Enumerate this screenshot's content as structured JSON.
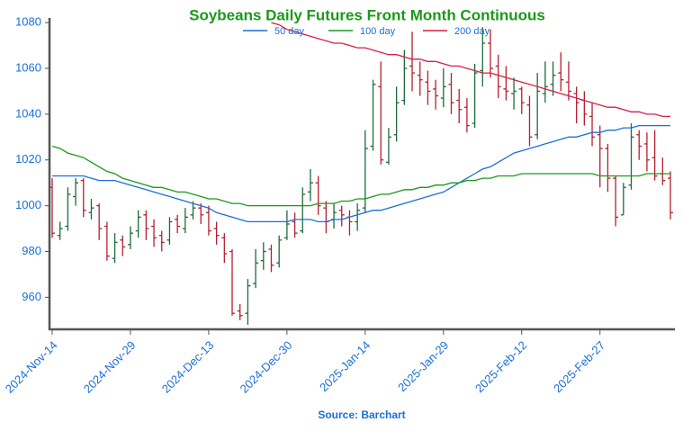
{
  "chart_data": {
    "type": "ohlc",
    "title": "Soybeans Daily Futures Front Month Continuous",
    "source": "Source: Barchart",
    "categories": [
      "2024-Nov-14",
      null,
      null,
      null,
      null,
      null,
      null,
      null,
      null,
      null,
      "2024-Nov-29",
      null,
      null,
      null,
      null,
      null,
      null,
      null,
      null,
      null,
      "2024-Dec-13",
      null,
      null,
      null,
      null,
      null,
      null,
      null,
      null,
      null,
      "2024-Dec-30",
      null,
      null,
      null,
      null,
      null,
      null,
      null,
      null,
      null,
      "2025-Jan-14",
      null,
      null,
      null,
      null,
      null,
      null,
      null,
      null,
      null,
      "2025-Jan-29",
      null,
      null,
      null,
      null,
      null,
      null,
      null,
      null,
      null,
      "2025-Feb-12",
      null,
      null,
      null,
      null,
      null,
      null,
      null,
      null,
      null,
      "2025-Feb-27",
      null,
      null,
      null,
      null,
      null,
      null,
      null,
      null,
      null
    ],
    "open": [
      1008,
      987,
      991,
      1004,
      1011,
      997,
      1000,
      991,
      977,
      985,
      983,
      989,
      996,
      991,
      987,
      985,
      994,
      990,
      996,
      999,
      997,
      990,
      986,
      980,
      954,
      953,
      966,
      976,
      981,
      975,
      986,
      993,
      989,
      1006,
      1010,
      999,
      994,
      998,
      995,
      993,
      999,
      1026,
      1052,
      1019,
      1031,
      1046,
      1061,
      1057,
      1054,
      1051,
      1047,
      1053,
      1046,
      1043,
      1036,
      1059,
      1071,
      1061,
      1051,
      1049,
      1051,
      1044,
      1031,
      1049,
      1053,
      1058,
      1054,
      1049,
      1046,
      1039,
      1031,
      1025,
      1012,
      996,
      1009,
      1031,
      1027,
      1021,
      1014,
      1012
    ],
    "high": [
      1012,
      993,
      1008,
      1012,
      1012,
      1003,
      1001,
      993,
      988,
      987,
      991,
      998,
      998,
      994,
      989,
      995,
      996,
      999,
      1002,
      1001,
      1000,
      993,
      988,
      981,
      957,
      968,
      981,
      984,
      983,
      987,
      998,
      997,
      1008,
      1016,
      1013,
      1002,
      1001,
      1000,
      998,
      1001,
      1033,
      1055,
      1063,
      1034,
      1052,
      1068,
      1076,
      1063,
      1059,
      1055,
      1060,
      1058,
      1051,
      1047,
      1062,
      1078,
      1077,
      1066,
      1061,
      1056,
      1052,
      1048,
      1058,
      1063,
      1063,
      1067,
      1063,
      1052,
      1050,
      1045,
      1035,
      1027,
      1013,
      1010,
      1036,
      1033,
      1032,
      1033,
      1021,
      1015
    ],
    "low": [
      986,
      985,
      989,
      1000,
      995,
      994,
      985,
      976,
      975,
      978,
      981,
      986,
      985,
      982,
      980,
      983,
      988,
      988,
      994,
      992,
      987,
      983,
      975,
      952,
      950,
      948,
      964,
      972,
      971,
      973,
      985,
      986,
      988,
      1002,
      996,
      988,
      990,
      991,
      987,
      989,
      997,
      1024,
      1018,
      1018,
      1028,
      1044,
      1050,
      1048,
      1044,
      1042,
      1043,
      1040,
      1036,
      1032,
      1034,
      1052,
      1056,
      1047,
      1046,
      1042,
      1040,
      1026,
      1029,
      1045,
      1048,
      1050,
      1046,
      1036,
      1035,
      1026,
      1008,
      1006,
      991,
      996,
      1007,
      1020,
      1015,
      1011,
      1009,
      994
    ],
    "close": [
      988,
      990,
      1005,
      1010,
      998,
      999,
      990,
      978,
      984,
      982,
      988,
      995,
      990,
      986,
      984,
      993,
      991,
      995,
      999,
      996,
      989,
      987,
      979,
      953,
      952,
      965,
      975,
      980,
      974,
      985,
      992,
      988,
      1005,
      1010,
      1000,
      993,
      997,
      996,
      993,
      998,
      1025,
      1053,
      1020,
      1030,
      1045,
      1060,
      1058,
      1055,
      1050,
      1048,
      1052,
      1045,
      1042,
      1035,
      1058,
      1071,
      1060,
      1052,
      1050,
      1050,
      1045,
      1030,
      1050,
      1052,
      1057,
      1055,
      1050,
      1045,
      1040,
      1030,
      1025,
      1012,
      995,
      1008,
      1030,
      1026,
      1020,
      1013,
      1011,
      997
    ],
    "up_color": "#1e6b3c",
    "down_color": "#b5202f",
    "series": [
      {
        "name": "50 day",
        "color": "#1a6fd9",
        "values": [
          1013,
          1013,
          1013,
          1013,
          1013,
          1012,
          1011,
          1011,
          1011,
          1010,
          1009,
          1008,
          1007,
          1006,
          1005,
          1004,
          1003,
          1002,
          1001,
          1000,
          999,
          997,
          996,
          995,
          994,
          993,
          993,
          993,
          993,
          993,
          993,
          994,
          994,
          994,
          993,
          993,
          994,
          994,
          995,
          996,
          997,
          998,
          998,
          999,
          1000,
          1001,
          1002,
          1003,
          1004,
          1005,
          1006,
          1008,
          1010,
          1012,
          1014,
          1016,
          1017,
          1019,
          1021,
          1023,
          1024,
          1025,
          1026,
          1027,
          1028,
          1029,
          1030,
          1030,
          1031,
          1032,
          1032,
          1033,
          1033,
          1034,
          1034,
          1035,
          1035,
          1035,
          1035,
          1035
        ]
      },
      {
        "name": "100 day",
        "color": "#1a9a1a",
        "values": [
          1026,
          1025,
          1023,
          1022,
          1021,
          1019,
          1017,
          1015,
          1014,
          1012,
          1011,
          1010,
          1009,
          1008,
          1008,
          1007,
          1006,
          1006,
          1005,
          1004,
          1003,
          1003,
          1002,
          1001,
          1001,
          1000,
          1000,
          1000,
          1000,
          1000,
          1000,
          1000,
          1000,
          1000,
          1001,
          1001,
          1001,
          1002,
          1002,
          1003,
          1003,
          1004,
          1005,
          1005,
          1006,
          1007,
          1007,
          1008,
          1008,
          1009,
          1009,
          1010,
          1010,
          1011,
          1011,
          1012,
          1012,
          1013,
          1013,
          1013,
          1014,
          1014,
          1014,
          1014,
          1014,
          1014,
          1014,
          1014,
          1014,
          1014,
          1013,
          1013,
          1013,
          1013,
          1013,
          1013,
          1014,
          1014,
          1014,
          1014
        ]
      },
      {
        "name": "200 day",
        "color": "#d61f45",
        "values": [
          null,
          null,
          null,
          null,
          null,
          null,
          null,
          null,
          null,
          null,
          null,
          null,
          null,
          null,
          null,
          null,
          null,
          null,
          null,
          null,
          null,
          null,
          null,
          null,
          null,
          null,
          null,
          null,
          1080,
          1079,
          1077,
          1076,
          1075,
          1074,
          1073,
          1072,
          1071,
          1071,
          1070,
          1069,
          1069,
          1068,
          1067,
          1066,
          1066,
          1065,
          1064,
          1064,
          1063,
          1063,
          1062,
          1061,
          1061,
          1060,
          1059,
          1058,
          1058,
          1057,
          1056,
          1055,
          1054,
          1053,
          1052,
          1051,
          1050,
          1049,
          1048,
          1047,
          1046,
          1045,
          1044,
          1043,
          1043,
          1042,
          1041,
          1041,
          1040,
          1040,
          1039,
          1039
        ]
      }
    ],
    "ylim": [
      946,
      1082
    ],
    "yticks": [
      960,
      980,
      1000,
      1020,
      1040,
      1060,
      1080
    ],
    "grid": false,
    "legend": "top"
  }
}
